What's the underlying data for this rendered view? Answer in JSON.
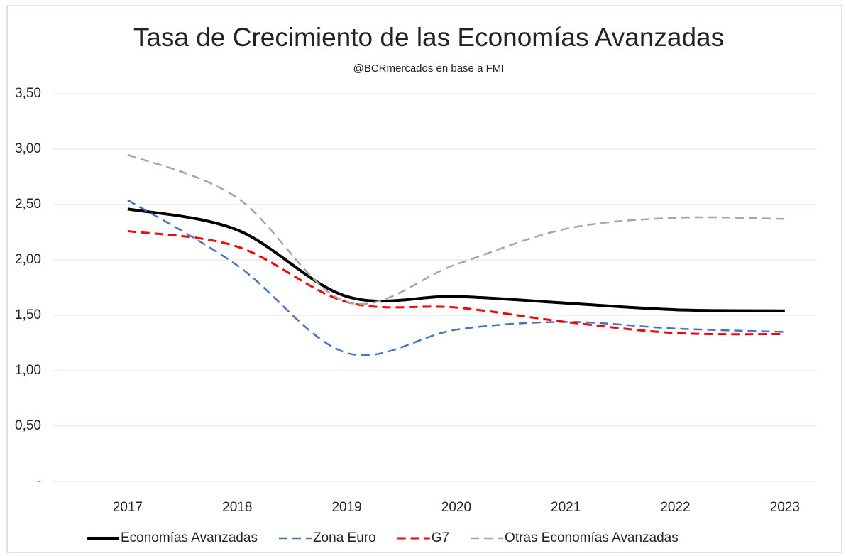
{
  "chart_data": {
    "type": "line",
    "title": "Tasa de Crecimiento de las Economías Avanzadas",
    "subtitle": "@BCRmercados en base a FMI",
    "categories": [
      "2017",
      "2018",
      "2019",
      "2020",
      "2021",
      "2022",
      "2023"
    ],
    "series": [
      {
        "name": "Economías Avanzadas",
        "color": "#000000",
        "dashed": false,
        "values": [
          2.46,
          2.27,
          1.67,
          1.67,
          1.61,
          1.55,
          1.54
        ]
      },
      {
        "name": "Zona Euro",
        "color": "#4472c4",
        "dashed": true,
        "values": [
          2.54,
          1.95,
          1.16,
          1.37,
          1.44,
          1.38,
          1.35
        ]
      },
      {
        "name": "G7",
        "color": "#ff0000",
        "dashed": true,
        "values": [
          2.26,
          2.12,
          1.62,
          1.57,
          1.44,
          1.34,
          1.33
        ]
      },
      {
        "name": "Otras Economías Avanzadas",
        "color": "#a5a5a5",
        "dashed": true,
        "values": [
          2.95,
          2.56,
          1.62,
          1.96,
          2.28,
          2.38,
          2.37
        ]
      }
    ],
    "ylim": [
      0,
      3.5
    ],
    "yticks": [
      {
        "value": 0,
        "label": "-"
      },
      {
        "value": 0.5,
        "label": "0,50"
      },
      {
        "value": 1,
        "label": "1,00"
      },
      {
        "value": 1.5,
        "label": "1,50"
      },
      {
        "value": 2,
        "label": "2,00"
      },
      {
        "value": 2.5,
        "label": "2,50"
      },
      {
        "value": 3,
        "label": "3,00"
      },
      {
        "value": 3.5,
        "label": "3,50"
      }
    ],
    "grid": true,
    "legend": "bottom"
  }
}
